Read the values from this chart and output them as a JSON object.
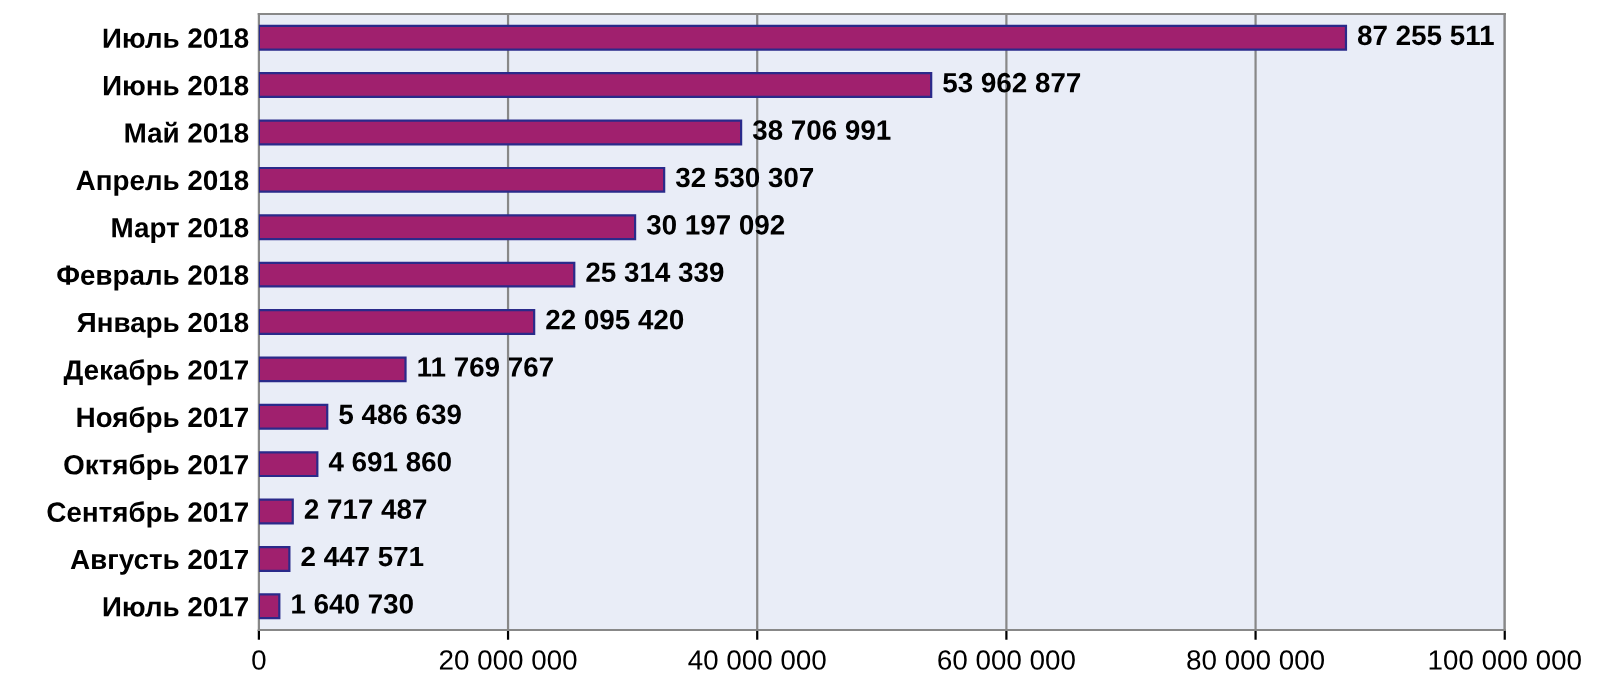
{
  "chart_data": {
    "type": "bar",
    "orientation": "horizontal",
    "categories": [
      "Июль 2018",
      "Июнь 2018",
      "Май 2018",
      "Апрель 2018",
      "Март 2018",
      "Февраль 2018",
      "Январь 2018",
      "Декабрь 2017",
      "Ноябрь 2017",
      "Октябрь 2017",
      "Сентябрь 2017",
      "Августь 2017",
      "Июль 2017"
    ],
    "values": [
      87255511,
      53962877,
      38706991,
      32530307,
      30197092,
      25314339,
      22095420,
      11769767,
      5486639,
      4691860,
      2717487,
      2447571,
      1640730
    ],
    "value_labels": [
      "87 255 511",
      "53 962 877",
      "38 706 991",
      "32 530 307",
      "30 197 092",
      "25 314 339",
      "22 095 420",
      "11 769 767",
      "5 486 639",
      "4 691 860",
      "2 717 487",
      "2 447 571",
      "1 640 730"
    ],
    "color": "#a0206e",
    "xlim": [
      0,
      100000000
    ],
    "xticks": [
      0,
      {
        "value": 20000000,
        "label": "20 000 000"
      },
      {
        "value": 40000000,
        "label": "40 000 000"
      },
      {
        "value": 60000000,
        "label": "60 000 000"
      },
      {
        "value": 80000000,
        "label": "80 000 000"
      },
      {
        "value": 100000000,
        "label": "100 000 000"
      }
    ],
    "grid": "x",
    "legend": false
  }
}
